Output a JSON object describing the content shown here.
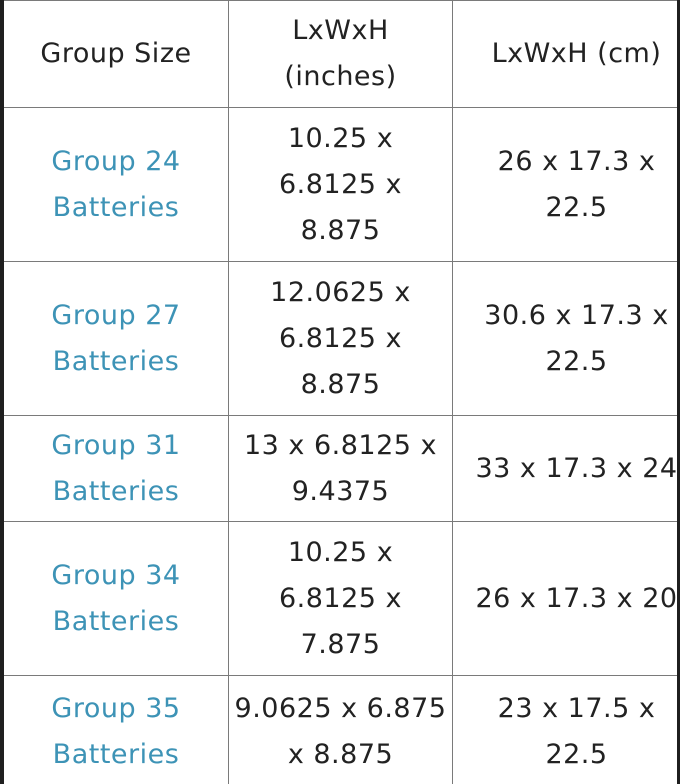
{
  "table": {
    "headers": [
      "Group Size",
      "LxWxH (inches)",
      "LxWxH (cm)"
    ],
    "rows": [
      {
        "group": "Group 24 Batteries",
        "inches": "10.25 x 6.8125 x 8.875",
        "cm": "26 x 17.3 x 22.5"
      },
      {
        "group": "Group 27 Batteries",
        "inches": "12.0625 x 6.8125 x 8.875",
        "cm": "30.6 x 17.3 x 22.5"
      },
      {
        "group": "Group 31 Batteries",
        "inches": "13 x 6.8125 x 9.4375",
        "cm": "33 x 17.3 x 24"
      },
      {
        "group": "Group 34 Batteries",
        "inches": "10.25 x 6.8125 x 7.875",
        "cm": "26 x 17.3 x 20"
      },
      {
        "group": "Group 35 Batteries",
        "inches": "9.0625 x 6.875 x 8.875",
        "cm": "23 x 17.5 x 22.5"
      }
    ]
  },
  "colors": {
    "link": "#3d93b6",
    "text": "#222222",
    "border": "#7a7a7a",
    "edge": "#1f1f1f"
  }
}
